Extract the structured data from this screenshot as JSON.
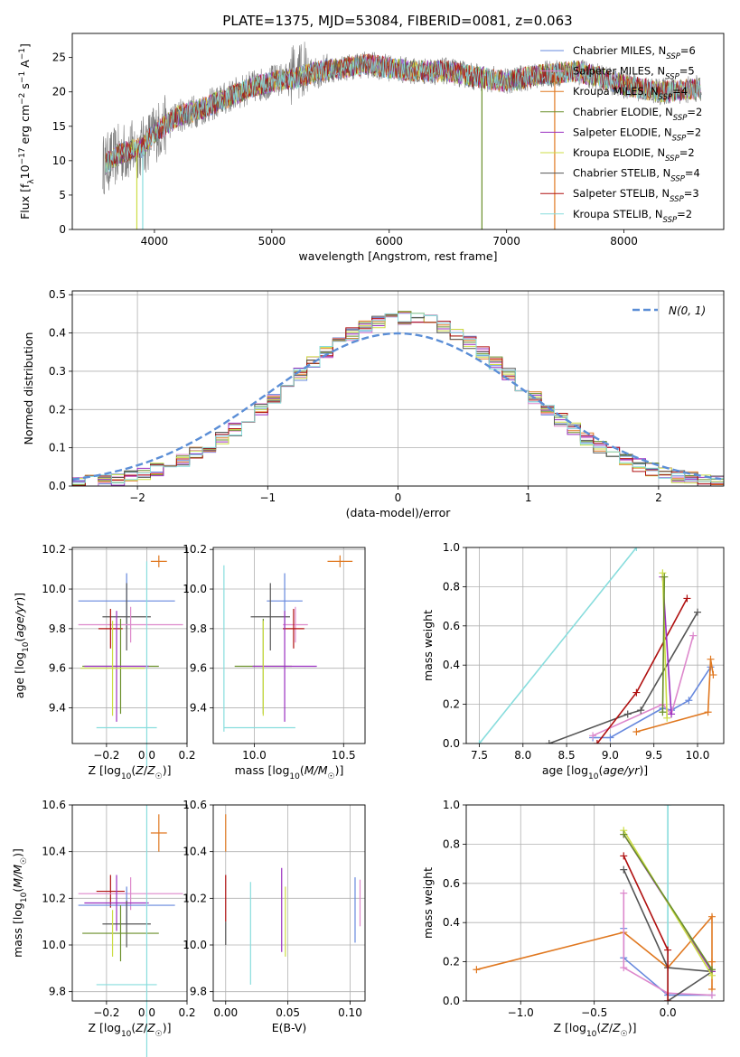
{
  "colors": {
    "Chabrier MILES": "#6688dd",
    "Salpeter MILES": "#dd88cc",
    "Kroupa MILES": "#e07820",
    "Chabrier ELODIE": "#6a8f2a",
    "Salpeter ELODIE": "#9a2fc0",
    "Kroupa ELODIE": "#ccdd44",
    "Chabrier STELIB": "#555555",
    "Salpeter STELIB": "#b01010",
    "Kroupa STELIB": "#88dddd",
    "normal": "#5b8ed6"
  },
  "chart_data": [
    {
      "id": "spectrum",
      "type": "line",
      "title": "PLATE=1375, MJD=53084, FIBERID=0081, z=0.063",
      "xlabel": "wavelength [Angstrom, rest frame]",
      "ylabel": "Flux [f_λ 10^-17 erg cm^-2 s^-1 A^-1]",
      "xlim": [
        3300,
        8850
      ],
      "ylim": [
        0,
        28.5
      ],
      "xticks": [
        4000,
        5000,
        6000,
        7000,
        8000
      ],
      "yticks": [
        0,
        5,
        10,
        15,
        20,
        25
      ],
      "legend": [
        "Chabrier MILES, N_SSP=6",
        "Salpeter MILES, N_SSP=5",
        "Kroupa MILES, N_SSP=4",
        "Chabrier ELODIE, N_SSP=2",
        "Salpeter ELODIE, N_SSP=2",
        "Kroupa ELODIE, N_SSP=2",
        "Chabrier STELIB, N_SSP=4",
        "Salpeter STELIB, N_SSP=3",
        "Kroupa STELIB, N_SSP=2"
      ],
      "legend_position": "upper-right",
      "continuum": [
        [
          3580,
          9.5
        ],
        [
          3700,
          11
        ],
        [
          3900,
          12
        ],
        [
          4000,
          14
        ],
        [
          4200,
          16.5
        ],
        [
          4400,
          17.5
        ],
        [
          4600,
          19
        ],
        [
          4800,
          20.5
        ],
        [
          5000,
          21.5
        ],
        [
          5200,
          22
        ],
        [
          5400,
          23
        ],
        [
          5600,
          23.5
        ],
        [
          5800,
          24
        ],
        [
          6000,
          23.5
        ],
        [
          6200,
          23
        ],
        [
          6500,
          23
        ],
        [
          6800,
          22
        ],
        [
          7000,
          21.5
        ],
        [
          7300,
          22.5
        ],
        [
          7600,
          23
        ],
        [
          7800,
          22
        ],
        [
          8000,
          21
        ],
        [
          8300,
          20
        ],
        [
          8650,
          20.5
        ]
      ],
      "drop_lines": [
        {
          "x": 3850,
          "series": "Kroupa ELODIE"
        },
        {
          "x": 3900,
          "series": "Kroupa STELIB"
        },
        {
          "x": 6790,
          "series": "Chabrier ELODIE"
        },
        {
          "x": 7410,
          "series": "Kroupa MILES"
        }
      ]
    },
    {
      "id": "residuals",
      "type": "histogram",
      "xlabel": "(data-model)/error",
      "ylabel": "Normed distribution",
      "xlim": [
        -2.5,
        2.5
      ],
      "ylim": [
        0,
        0.51
      ],
      "xticks": [
        -2,
        -1,
        0,
        1,
        2
      ],
      "yticks": [
        0.0,
        0.1,
        0.2,
        0.3,
        0.4,
        0.5
      ],
      "grid": true,
      "curve_label": "N(0,1)",
      "legend_position": "upper-right",
      "bin_width": 0.1
    },
    {
      "id": "Z-age",
      "type": "errorbar",
      "xlabel": "Z [log10(Z/Z☉)]",
      "ylabel": "age [log10(age/yr)]",
      "xlim": [
        -0.37,
        0.2
      ],
      "ylim": [
        9.22,
        10.21
      ],
      "xticks": [
        -0.2,
        0.0,
        0.2
      ],
      "yticks": [
        9.4,
        9.6,
        9.8,
        10.0,
        10.2
      ],
      "grid": true,
      "points": [
        {
          "series": "Kroupa MILES",
          "x": 0.06,
          "xerr": 0.04,
          "y": 10.14,
          "yerr": 0.03
        },
        {
          "series": "Chabrier MILES",
          "x": -0.1,
          "xerr": 0.24,
          "y": 9.94,
          "yerr": 0.14
        },
        {
          "series": "Chabrier STELIB",
          "x": -0.1,
          "xerr": 0.12,
          "y": 9.86,
          "yerr": 0.17
        },
        {
          "series": "Salpeter MILES",
          "x": -0.08,
          "xerr": 0.26,
          "y": 9.82,
          "yerr": 0.09
        },
        {
          "series": "Salpeter STELIB",
          "x": -0.18,
          "xerr": 0.06,
          "y": 9.8,
          "yerr": 0.1
        },
        {
          "series": "Chabrier ELODIE",
          "x": -0.13,
          "xerr": 0.19,
          "y": 9.61,
          "yerr": 0.24
        },
        {
          "series": "Salpeter ELODIE",
          "x": -0.15,
          "xerr": 0.16,
          "y": 9.61,
          "yerr": 0.28
        },
        {
          "series": "Kroupa ELODIE",
          "x": -0.17,
          "xerr": 0.16,
          "y": 9.6,
          "yerr": 0.24
        },
        {
          "series": "Kroupa STELIB",
          "x": 0.0,
          "xerr": 0.0,
          "y": 9.62,
          "yerr": 0.52
        },
        {
          "series": "Kroupa STELIB",
          "x": -0.1,
          "xerr": 0.15,
          "y": 9.3,
          "yerr": 0.0
        }
      ]
    },
    {
      "id": "mass-age",
      "type": "errorbar",
      "xlabel": "mass [log10(M/M☉)]",
      "ylabel": "",
      "xlim": [
        9.77,
        10.62
      ],
      "ylim": [
        9.22,
        10.21
      ],
      "xticks": [
        10.0,
        10.5
      ],
      "yticks": [
        9.4,
        9.6,
        9.8,
        10.0,
        10.2
      ],
      "grid": true,
      "points": [
        {
          "series": "Kroupa MILES",
          "x": 10.48,
          "xerr": 0.07,
          "y": 10.14,
          "yerr": 0.03
        },
        {
          "series": "Chabrier MILES",
          "x": 10.17,
          "xerr": 0.1,
          "y": 9.94,
          "yerr": 0.14
        },
        {
          "series": "Chabrier STELIB",
          "x": 10.09,
          "xerr": 0.11,
          "y": 9.86,
          "yerr": 0.17
        },
        {
          "series": "Salpeter MILES",
          "x": 10.23,
          "xerr": 0.07,
          "y": 9.82,
          "yerr": 0.09
        },
        {
          "series": "Salpeter STELIB",
          "x": 10.22,
          "xerr": 0.06,
          "y": 9.8,
          "yerr": 0.1
        },
        {
          "series": "Chabrier ELODIE",
          "x": 10.05,
          "xerr": 0.16,
          "y": 9.61,
          "yerr": 0.24
        },
        {
          "series": "Salpeter ELODIE",
          "x": 10.17,
          "xerr": 0.18,
          "y": 9.61,
          "yerr": 0.28
        },
        {
          "series": "Kroupa ELODIE",
          "x": 10.05,
          "xerr": 0.0,
          "y": 9.6,
          "yerr": 0.24
        },
        {
          "series": "Kroupa STELIB",
          "x": 10.03,
          "xerr": 0.2,
          "y": 9.3,
          "yerr": 0.0
        },
        {
          "series": "Kroupa STELIB",
          "x": 9.83,
          "xerr": 0.0,
          "y": 9.7,
          "yerr": 0.42
        }
      ]
    },
    {
      "id": "age-weight",
      "type": "line",
      "xlabel": "age [log10(age/yr)]",
      "ylabel": "mass weight",
      "xlim": [
        7.35,
        10.3
      ],
      "ylim": [
        0,
        1.0
      ],
      "xticks": [
        7.5,
        8.0,
        8.5,
        9.0,
        9.5,
        10.0
      ],
      "yticks": [
        0.0,
        0.2,
        0.4,
        0.6,
        0.8,
        1.0
      ],
      "grid": true,
      "series": [
        {
          "name": "Kroupa STELIB",
          "x": [
            7.5,
            9.3
          ],
          "y": [
            0.0,
            1.0
          ]
        },
        {
          "name": "Chabrier MILES",
          "x": [
            8.8,
            9.0,
            9.6,
            9.7,
            9.9,
            10.15
          ],
          "y": [
            0.03,
            0.03,
            0.18,
            0.17,
            0.22,
            0.39
          ]
        },
        {
          "name": "Salpeter MILES",
          "x": [
            8.8,
            9.6,
            9.7,
            9.95
          ],
          "y": [
            0.04,
            0.2,
            0.15,
            0.55
          ]
        },
        {
          "name": "Kroupa MILES",
          "x": [
            9.3,
            10.12,
            10.15,
            10.18
          ],
          "y": [
            0.06,
            0.16,
            0.43,
            0.35
          ]
        },
        {
          "name": "Chabrier STELIB",
          "x": [
            8.3,
            9.2,
            9.35,
            10.0
          ],
          "y": [
            0.0,
            0.15,
            0.17,
            0.67
          ]
        },
        {
          "name": "Salpeter STELIB",
          "x": [
            8.85,
            9.3,
            9.88
          ],
          "y": [
            0.0,
            0.26,
            0.74
          ]
        },
        {
          "name": "Salpeter ELODIE",
          "x": [
            9.6,
            9.7
          ],
          "y": [
            0.85,
            0.15
          ]
        },
        {
          "name": "Kroupa ELODIE",
          "x": [
            9.6,
            9.65
          ],
          "y": [
            0.87,
            0.13
          ]
        },
        {
          "name": "Chabrier ELODIE",
          "x": [
            9.62,
            9.6
          ],
          "y": [
            0.85,
            0.16
          ]
        }
      ]
    },
    {
      "id": "Z-mass",
      "type": "errorbar",
      "xlabel": "Z [log10(Z/Z☉)]",
      "ylabel": "mass [log10(M/M☉)]",
      "xlim": [
        -0.37,
        0.2
      ],
      "ylim": [
        9.76,
        10.6
      ],
      "xticks": [
        -0.2,
        0.0,
        0.2
      ],
      "yticks": [
        9.8,
        10.0,
        10.2,
        10.4,
        10.6
      ],
      "grid": true,
      "points": [
        {
          "series": "Kroupa MILES",
          "x": 0.06,
          "xerr": 0.04,
          "y": 10.48,
          "yerr": 0.08
        },
        {
          "series": "Salpeter STELIB",
          "x": -0.18,
          "xerr": 0.07,
          "y": 10.23,
          "yerr": 0.07
        },
        {
          "series": "Salpeter MILES",
          "x": -0.08,
          "xerr": 0.26,
          "y": 10.22,
          "yerr": 0.07
        },
        {
          "series": "Chabrier MILES",
          "x": -0.1,
          "xerr": 0.24,
          "y": 10.17,
          "yerr": 0.08
        },
        {
          "series": "Salpeter ELODIE",
          "x": -0.15,
          "xerr": 0.16,
          "y": 10.18,
          "yerr": 0.12
        },
        {
          "series": "Chabrier STELIB",
          "x": -0.1,
          "xerr": 0.12,
          "y": 10.09,
          "yerr": 0.1
        },
        {
          "series": "Chabrier ELODIE",
          "x": -0.13,
          "xerr": 0.19,
          "y": 10.05,
          "yerr": 0.12
        },
        {
          "series": "Kroupa ELODIE",
          "x": -0.17,
          "xerr": 0.0,
          "y": 10.05,
          "yerr": 0.1
        },
        {
          "series": "Kroupa STELIB",
          "x": -0.1,
          "xerr": 0.15,
          "y": 9.83,
          "yerr": 0.0
        },
        {
          "series": "Kroupa STELIB",
          "x": 0.0,
          "xerr": 0.0,
          "y": 10.05,
          "yerr": 0.55
        }
      ]
    },
    {
      "id": "ebv-mass",
      "type": "errorbar",
      "xlabel": "E(B-V)",
      "ylabel": "",
      "xlim": [
        -0.01,
        0.112
      ],
      "ylim": [
        9.76,
        10.6
      ],
      "xticks": [
        0.0,
        0.05,
        0.1
      ],
      "yticks": [
        9.8,
        10.0,
        10.2,
        10.4,
        10.6
      ],
      "grid": true,
      "points": [
        {
          "series": "Kroupa MILES",
          "x": 0.0,
          "xerr": 0.0,
          "y": 10.48,
          "yerr": 0.08
        },
        {
          "series": "Salpeter STELIB",
          "x": 0.0,
          "xerr": 0.0,
          "y": 10.2,
          "yerr": 0.1
        },
        {
          "series": "Chabrier STELIB",
          "x": 0.0,
          "xerr": 0.0,
          "y": 10.05,
          "yerr": 0.05
        },
        {
          "series": "Kroupa STELIB",
          "x": 0.02,
          "xerr": 0.0,
          "y": 10.05,
          "yerr": 0.22
        },
        {
          "series": "Salpeter ELODIE",
          "x": 0.045,
          "xerr": 0.0,
          "y": 10.15,
          "yerr": 0.18
        },
        {
          "series": "Kroupa ELODIE",
          "x": 0.048,
          "xerr": 0.0,
          "y": 10.1,
          "yerr": 0.15
        },
        {
          "series": "Chabrier MILES",
          "x": 0.104,
          "xerr": 0.0,
          "y": 10.15,
          "yerr": 0.14
        },
        {
          "series": "Salpeter MILES",
          "x": 0.108,
          "xerr": 0.0,
          "y": 10.18,
          "yerr": 0.1
        }
      ]
    },
    {
      "id": "Z-weight",
      "type": "line",
      "xlabel": "Z [log10(Z/Z☉)]",
      "ylabel": "mass weight",
      "xlim": [
        -1.37,
        0.38
      ],
      "ylim": [
        0,
        1.0
      ],
      "xticks": [
        -1.0,
        -0.5,
        0.0
      ],
      "yticks": [
        0.0,
        0.2,
        0.4,
        0.6,
        0.8,
        1.0
      ],
      "grid": true,
      "series": [
        {
          "name": "Kroupa STELIB",
          "x": [
            0.0,
            0.0
          ],
          "y": [
            1.0,
            0.0
          ]
        },
        {
          "name": "Kroupa MILES",
          "x": [
            -1.3,
            -0.3,
            0.0,
            0.3,
            0.3,
            0.3
          ],
          "y": [
            0.16,
            0.35,
            0.17,
            0.43,
            0.2,
            0.06
          ]
        },
        {
          "name": "Chabrier MILES",
          "x": [
            -0.3,
            -0.3,
            0.0,
            0.3
          ],
          "y": [
            0.37,
            0.22,
            0.03,
            0.03
          ]
        },
        {
          "name": "Salpeter MILES",
          "x": [
            -0.3,
            -0.3,
            0.0,
            0.3
          ],
          "y": [
            0.55,
            0.17,
            0.04,
            0.03
          ]
        },
        {
          "name": "Chabrier STELIB",
          "x": [
            -0.3,
            0.0,
            0.3,
            0.0
          ],
          "y": [
            0.67,
            0.17,
            0.15,
            0.0
          ]
        },
        {
          "name": "Salpeter STELIB",
          "x": [
            -0.3,
            0.0,
            0.0
          ],
          "y": [
            0.74,
            0.26,
            0.0
          ]
        },
        {
          "name": "Salpeter ELODIE",
          "x": [
            -0.3,
            0.3
          ],
          "y": [
            0.85,
            0.15
          ]
        },
        {
          "name": "Kroupa ELODIE",
          "x": [
            -0.3,
            0.3
          ],
          "y": [
            0.87,
            0.13
          ]
        },
        {
          "name": "Chabrier ELODIE",
          "x": [
            -0.3,
            0.3
          ],
          "y": [
            0.85,
            0.16
          ]
        }
      ]
    }
  ]
}
